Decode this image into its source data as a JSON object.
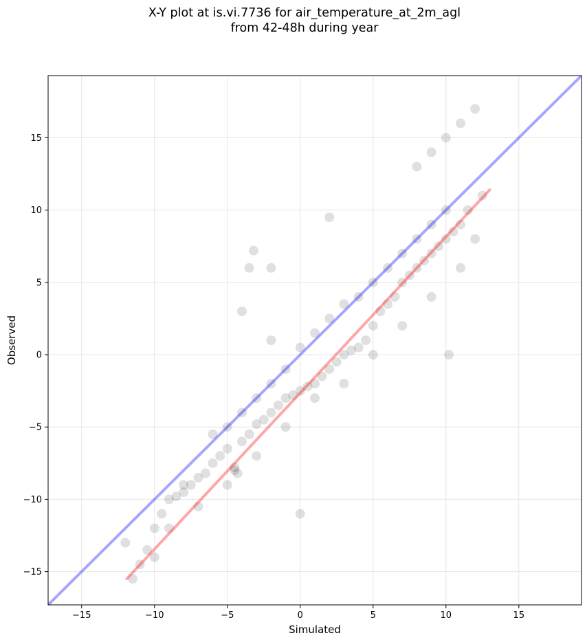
{
  "chart_data": {
    "type": "scatter",
    "title": "X-Y plot at is.vi.7736 for air_temperature_at_2m_agl\nfrom 42-48h during year",
    "xlabel": "Simulated",
    "ylabel": "Observed",
    "xlim": [
      -17.3,
      19.3
    ],
    "ylim": [
      -17.3,
      19.3
    ],
    "xticks": [
      -15,
      -10,
      -5,
      0,
      5,
      10,
      15
    ],
    "yticks": [
      -15,
      -10,
      -5,
      0,
      5,
      10,
      15
    ],
    "xtick_labels": [
      "−15",
      "−10",
      "−5",
      "0",
      "5",
      "10",
      "15"
    ],
    "ytick_labels": [
      "−15",
      "−10",
      "−5",
      "0",
      "5",
      "10",
      "15"
    ],
    "grid": true,
    "point_color": "#000000",
    "point_alpha": 0.07,
    "series": [
      {
        "kind": "scatter",
        "points": [
          [
            -11,
            -14.5
          ],
          [
            -10.5,
            -13.5
          ],
          [
            -10,
            -12
          ],
          [
            -9.5,
            -11
          ],
          [
            -9,
            -10
          ],
          [
            -8.5,
            -9.8
          ],
          [
            -8,
            -9.5
          ],
          [
            -7.5,
            -9
          ],
          [
            -7,
            -8.5
          ],
          [
            -6.5,
            -8.2
          ],
          [
            -6,
            -7.5
          ],
          [
            -5.5,
            -7
          ],
          [
            -5,
            -6.5
          ],
          [
            -4.5,
            -8
          ],
          [
            -4.3,
            -8.2
          ],
          [
            -4.5,
            -7.8
          ],
          [
            -4,
            -6
          ],
          [
            -3.5,
            -5.5
          ],
          [
            -3,
            -4.8
          ],
          [
            -2.5,
            -4.5
          ],
          [
            -2,
            -4
          ],
          [
            -1.5,
            -3.5
          ],
          [
            -1,
            -3
          ],
          [
            -0.5,
            -2.8
          ],
          [
            0,
            -2.5
          ],
          [
            0.5,
            -2.2
          ],
          [
            1,
            -2
          ],
          [
            1.5,
            -1.5
          ],
          [
            2,
            -1
          ],
          [
            2.5,
            -0.5
          ],
          [
            3,
            0
          ],
          [
            3.5,
            0.3
          ],
          [
            4,
            0.5
          ],
          [
            4.5,
            1
          ],
          [
            5,
            2
          ],
          [
            5.5,
            3
          ],
          [
            6,
            3.5
          ],
          [
            6.5,
            4
          ],
          [
            7,
            5
          ],
          [
            7.5,
            5.5
          ],
          [
            8,
            6
          ],
          [
            8.5,
            6.5
          ],
          [
            9,
            7
          ],
          [
            9.5,
            7.5
          ],
          [
            10,
            8
          ],
          [
            10.5,
            8.5
          ],
          [
            11,
            9
          ],
          [
            11.5,
            10
          ],
          [
            8,
            13
          ],
          [
            9,
            14
          ],
          [
            10,
            15
          ],
          [
            11,
            16
          ],
          [
            12,
            17
          ],
          [
            -8,
            -9
          ],
          [
            -6,
            -5.5
          ],
          [
            -5,
            -5
          ],
          [
            -4,
            -4
          ],
          [
            -3,
            -3
          ],
          [
            -2,
            -2
          ],
          [
            -1,
            -1
          ],
          [
            0,
            0.5
          ],
          [
            1,
            1.5
          ],
          [
            2,
            2.5
          ],
          [
            3,
            3.5
          ],
          [
            4,
            4
          ],
          [
            5,
            5
          ],
          [
            6,
            6
          ],
          [
            7,
            7
          ],
          [
            8,
            8
          ],
          [
            9,
            9
          ],
          [
            10,
            10
          ],
          [
            -9,
            -12
          ],
          [
            -7,
            -10.5
          ],
          [
            -5,
            -9
          ],
          [
            -3,
            -7
          ],
          [
            -1,
            -5
          ],
          [
            1,
            -3
          ],
          [
            3,
            -2
          ],
          [
            5,
            0
          ],
          [
            7,
            2
          ],
          [
            9,
            4
          ],
          [
            11,
            6
          ],
          [
            12,
            8
          ],
          [
            -3.2,
            7.2
          ],
          [
            -2,
            6
          ],
          [
            -3.5,
            6
          ],
          [
            0,
            -11
          ],
          [
            -12,
            -13
          ],
          [
            -11.5,
            -15.5
          ],
          [
            -10,
            -14
          ],
          [
            -4,
            3
          ],
          [
            -2,
            1
          ],
          [
            2,
            9.5
          ],
          [
            12.5,
            11
          ],
          [
            10.2,
            0
          ]
        ]
      },
      {
        "kind": "line",
        "name": "",
        "color": "#0000ff",
        "opacity": 0.35,
        "points": [
          [
            -17.3,
            -17.3
          ],
          [
            19.3,
            19.3
          ]
        ]
      },
      {
        "kind": "line",
        "name": "",
        "color": "#ff0000",
        "opacity": 0.35,
        "points": [
          [
            -11.9,
            -15.5
          ],
          [
            13.0,
            11.4
          ]
        ]
      }
    ]
  }
}
